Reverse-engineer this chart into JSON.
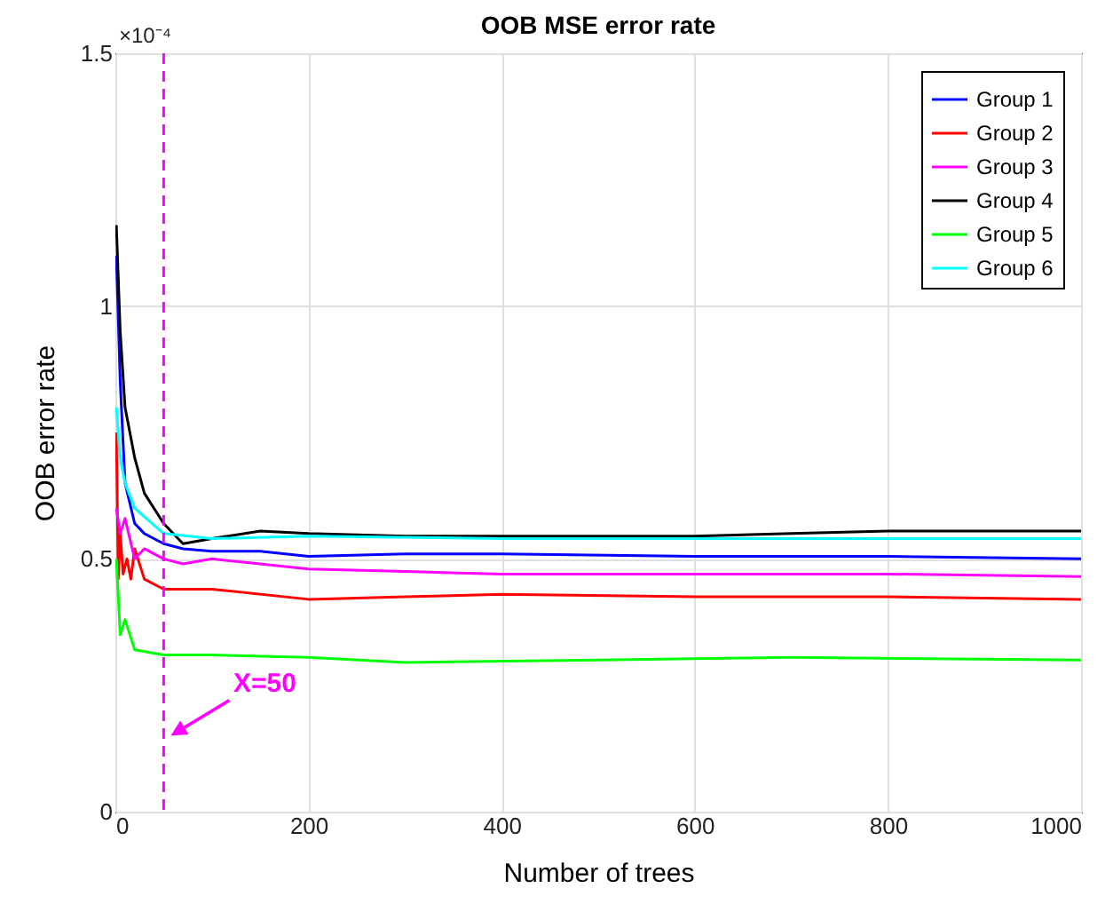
{
  "chart_data": {
    "type": "line",
    "title": "OOB MSE error rate",
    "xlabel": "Number of trees",
    "ylabel": "OOB error rate",
    "xlim": [
      0,
      1000
    ],
    "xticks": [
      0,
      200,
      400,
      600,
      800,
      1000
    ],
    "ylim": [
      0,
      1.5
    ],
    "yticks": [
      0,
      0.5,
      1,
      1.5
    ],
    "grid": true,
    "legend": "top right",
    "line_style": "solid",
    "annotations": [
      "×10⁻⁴",
      {
        "text": "X=50",
        "x": 50,
        "y": 0.15
      }
    ],
    "ref_lines": [
      {
        "axis": "x",
        "value": 50,
        "color": "#ff00ff",
        "line_style": "dashed"
      }
    ],
    "series": [
      {
        "name": "Group 1",
        "color": "#0000ff",
        "x": [
          1,
          5,
          10,
          20,
          30,
          50,
          70,
          100,
          150,
          200,
          300,
          400,
          600,
          800,
          1000
        ],
        "values": [
          1.1,
          0.85,
          0.65,
          0.57,
          0.55,
          0.53,
          0.52,
          0.515,
          0.515,
          0.505,
          0.51,
          0.51,
          0.505,
          0.505,
          0.5
        ]
      },
      {
        "name": "Group 2",
        "color": "#ff0000",
        "x": [
          1,
          3,
          5,
          8,
          12,
          16,
          20,
          30,
          50,
          70,
          100,
          200,
          300,
          400,
          600,
          800,
          1000
        ],
        "values": [
          0.75,
          0.46,
          0.55,
          0.47,
          0.5,
          0.46,
          0.52,
          0.46,
          0.44,
          0.44,
          0.44,
          0.42,
          0.425,
          0.43,
          0.425,
          0.425,
          0.42
        ]
      },
      {
        "name": "Group 3",
        "color": "#ff00ff",
        "x": [
          1,
          5,
          10,
          20,
          30,
          50,
          70,
          100,
          150,
          200,
          300,
          400,
          600,
          800,
          1000
        ],
        "values": [
          0.6,
          0.55,
          0.58,
          0.5,
          0.52,
          0.5,
          0.49,
          0.5,
          0.49,
          0.48,
          0.475,
          0.47,
          0.47,
          0.47,
          0.465
        ]
      },
      {
        "name": "Group 4",
        "color": "#000000",
        "x": [
          1,
          5,
          10,
          20,
          30,
          50,
          70,
          100,
          150,
          200,
          300,
          400,
          500,
          600,
          700,
          800,
          900,
          1000
        ],
        "values": [
          1.16,
          0.95,
          0.8,
          0.7,
          0.63,
          0.57,
          0.53,
          0.54,
          0.555,
          0.55,
          0.545,
          0.545,
          0.545,
          0.545,
          0.55,
          0.555,
          0.555,
          0.555
        ]
      },
      {
        "name": "Group 5",
        "color": "#00ff00",
        "x": [
          1,
          5,
          10,
          20,
          50,
          100,
          200,
          300,
          500,
          700,
          1000
        ],
        "values": [
          0.5,
          0.35,
          0.38,
          0.32,
          0.31,
          0.31,
          0.305,
          0.295,
          0.3,
          0.305,
          0.3
        ]
      },
      {
        "name": "Group 6",
        "color": "#00ffff",
        "x": [
          1,
          5,
          10,
          20,
          50,
          100,
          200,
          400,
          600,
          800,
          1000
        ],
        "values": [
          0.8,
          0.7,
          0.65,
          0.6,
          0.55,
          0.54,
          0.545,
          0.54,
          0.54,
          0.54,
          0.54
        ]
      }
    ]
  }
}
